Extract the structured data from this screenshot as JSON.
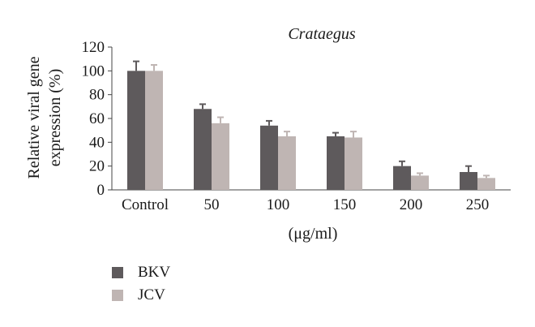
{
  "chart_data": {
    "type": "bar",
    "title": "Crataegus",
    "xlabel": "(μg/ml)",
    "ylabel": "Relative viral gene expression (%)",
    "ylabel_lines": [
      "Relative viral gene",
      "expression (%)"
    ],
    "categories": [
      "Control",
      "50",
      "100",
      "150",
      "200",
      "250"
    ],
    "ylim": [
      0,
      120
    ],
    "yticks": [
      0,
      20,
      40,
      60,
      80,
      100,
      120
    ],
    "grid": false,
    "legend_position": "bottom-left",
    "series": [
      {
        "name": "BKV",
        "color": "#5e5a5c",
        "values": [
          100,
          68,
          54,
          45,
          20,
          15
        ],
        "errors": [
          8,
          4,
          4,
          3,
          4,
          5
        ]
      },
      {
        "name": "JCV",
        "color": "#bfb5b3",
        "values": [
          100,
          56,
          45,
          44,
          12,
          10
        ],
        "errors": [
          5,
          5,
          4,
          5,
          2,
          2
        ]
      }
    ]
  }
}
